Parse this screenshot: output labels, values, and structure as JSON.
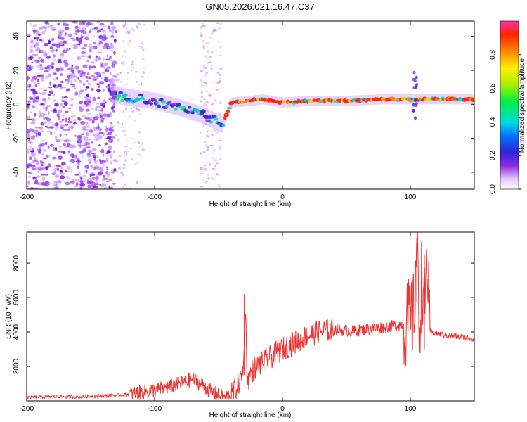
{
  "title": "GN05.2026.021.16.47.C37",
  "chart_data": [
    {
      "type": "heatmap",
      "xlabel": "Height of straight line (km)",
      "ylabel": "Frequency (Hz)",
      "xlim": [
        -200,
        150
      ],
      "ylim": [
        -50,
        49
      ],
      "xticks": [
        -200,
        -100,
        0,
        100
      ],
      "yticks": [
        -40,
        -20,
        0,
        20,
        40
      ],
      "colorbar": {
        "label": "Normalized spectral amplitude",
        "range": [
          0,
          1
        ],
        "ticks": [
          0.0,
          0.2,
          0.4,
          0.6,
          0.8
        ]
      },
      "ridge": [
        {
          "x": -135,
          "y": 6
        },
        {
          "x": -120,
          "y": 4
        },
        {
          "x": -100,
          "y": 2
        },
        {
          "x": -80,
          "y": -2
        },
        {
          "x": -60,
          "y": -7
        },
        {
          "x": -47,
          "y": -12
        },
        {
          "x": -40,
          "y": 1
        },
        {
          "x": -25,
          "y": 2
        },
        {
          "x": -15,
          "y": 3
        },
        {
          "x": 0,
          "y": 1
        },
        {
          "x": 20,
          "y": 2
        },
        {
          "x": 50,
          "y": 2
        },
        {
          "x": 80,
          "y": 3
        },
        {
          "x": 100,
          "y": 3
        },
        {
          "x": 120,
          "y": 3
        },
        {
          "x": 150,
          "y": 3
        }
      ]
    },
    {
      "type": "line",
      "xlabel": "Height of straight line (km)",
      "ylabel": "SNR (10 * v/v)",
      "xlim": [
        -200,
        150
      ],
      "ylim": [
        0,
        9800
      ],
      "xticks": [
        -200,
        -100,
        0,
        100
      ],
      "yticks": [
        2000,
        4000,
        6000,
        8000
      ],
      "color": "#ee3333",
      "series": [
        {
          "name": "SNR",
          "x": [
            -200,
            -180,
            -160,
            -140,
            -125,
            -115,
            -105,
            -95,
            -85,
            -75,
            -70,
            -65,
            -60,
            -55,
            -50,
            -45,
            -40,
            -35,
            -32,
            -30,
            -29,
            -28,
            -27,
            -25,
            -22,
            -18,
            -14,
            -10,
            -6,
            -2,
            0,
            5,
            10,
            15,
            20,
            25,
            30,
            35,
            40,
            45,
            50,
            55,
            60,
            65,
            70,
            75,
            80,
            85,
            90,
            95,
            100,
            103,
            105,
            107,
            109,
            111,
            113,
            115,
            120,
            130,
            140,
            150
          ],
          "y": [
            200,
            250,
            230,
            300,
            350,
            450,
            550,
            700,
            900,
            1100,
            1300,
            1000,
            800,
            500,
            300,
            250,
            350,
            900,
            1400,
            2500,
            6200,
            2000,
            1200,
            1600,
            1900,
            2100,
            2300,
            2500,
            2700,
            2900,
            3000,
            3200,
            3400,
            3600,
            3800,
            3950,
            4050,
            4100,
            4150,
            4100,
            4100,
            4050,
            4100,
            4150,
            4200,
            4250,
            4300,
            4350,
            4400,
            4450,
            4600,
            5000,
            9500,
            4000,
            7500,
            5000,
            8500,
            4000,
            3900,
            3800,
            3700,
            3600
          ]
        }
      ]
    }
  ]
}
